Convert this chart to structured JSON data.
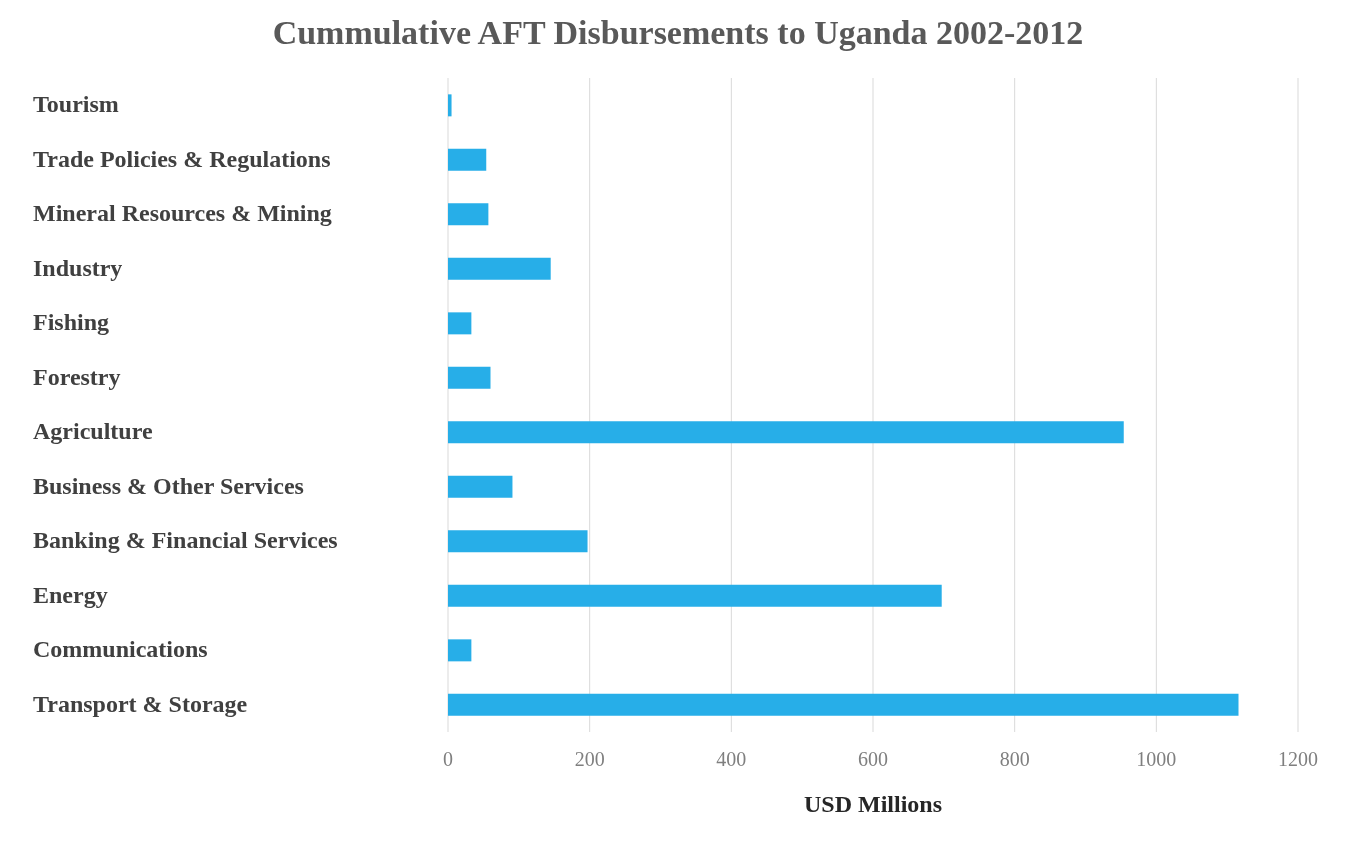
{
  "chart_data": {
    "type": "bar",
    "orientation": "horizontal",
    "title": "Cummulative AFT Disbursements to Uganda 2002-2012",
    "xlabel": "USD Millions",
    "categories": [
      "Tourism",
      "Trade Policies & Regulations",
      "Mineral Resources & Mining",
      "Industry",
      "Fishing",
      "Forestry",
      "Agriculture",
      "Business & Other Services",
      "Banking & Financial Services",
      "Energy",
      "Communications",
      "Transport & Storage"
    ],
    "values": [
      5,
      54,
      57,
      145,
      33,
      60,
      954,
      91,
      197,
      697,
      33,
      1116
    ],
    "color": "#27aee8",
    "xlim": [
      0,
      1200
    ],
    "xticks": [
      0,
      200,
      400,
      600,
      800,
      1000,
      1200
    ],
    "grid": "x"
  }
}
